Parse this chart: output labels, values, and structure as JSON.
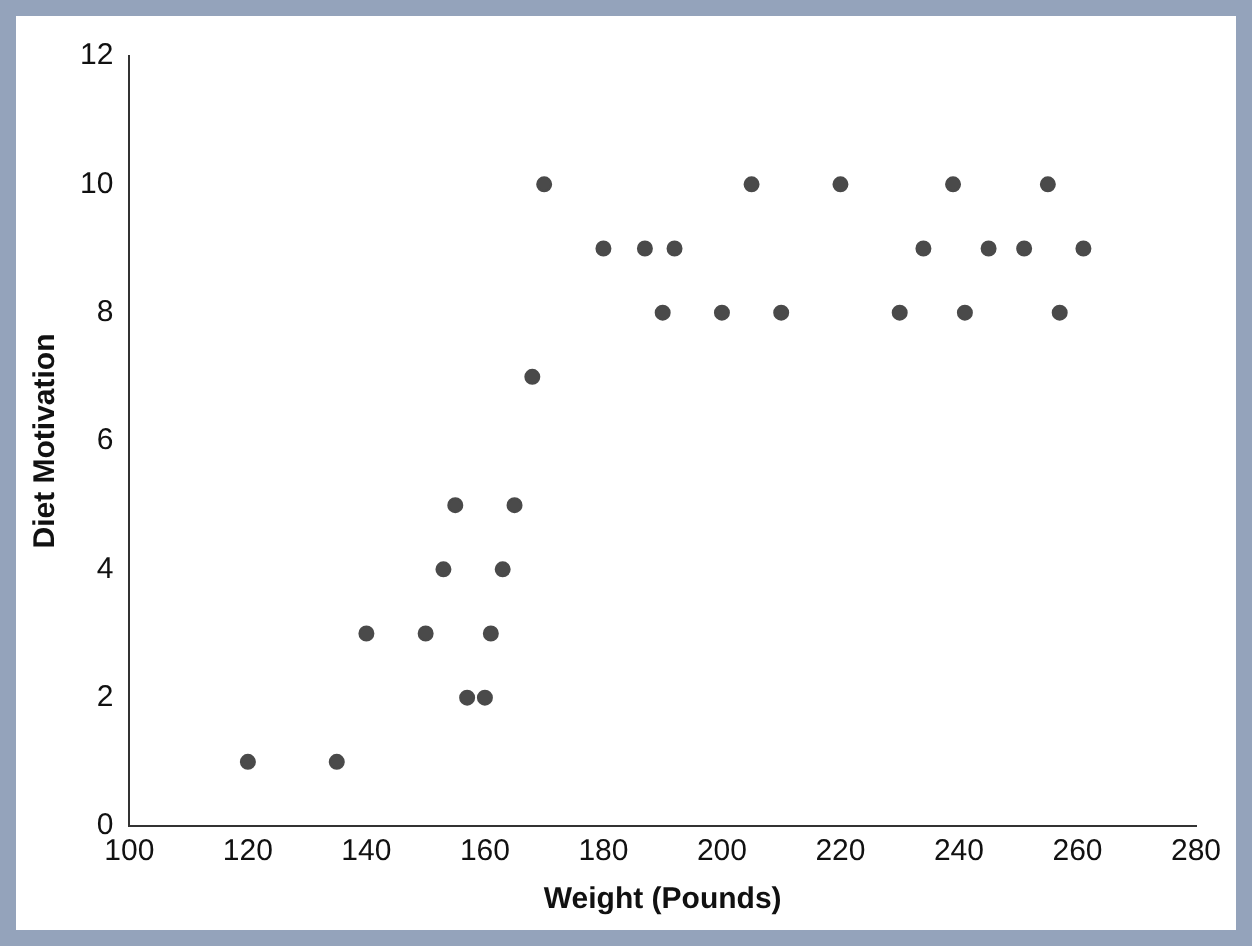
{
  "chart_data": {
    "type": "scatter",
    "xlabel": "Weight (Pounds)",
    "ylabel": "Diet Motivation",
    "x": [
      120,
      135,
      140,
      150,
      153,
      155,
      157,
      160,
      161,
      163,
      165,
      168,
      170,
      180,
      187,
      190,
      192,
      200,
      205,
      210,
      220,
      230,
      234,
      239,
      241,
      245,
      251,
      255,
      257,
      261
    ],
    "series": [
      {
        "color": "#4a4a4a",
        "values": [
          1,
          1,
          3,
          3,
          4,
          5,
          2,
          2,
          3,
          4,
          5,
          7,
          10,
          9,
          9,
          8,
          9,
          8,
          10,
          8,
          10,
          8,
          9,
          10,
          8,
          9,
          9,
          10,
          8,
          9
        ]
      }
    ],
    "xlim": [
      100,
      280
    ],
    "xticks": [
      100,
      120,
      140,
      160,
      180,
      200,
      220,
      240,
      260,
      280
    ],
    "ylim": [
      0,
      12
    ],
    "yticks": [
      0,
      2,
      4,
      6,
      8,
      10,
      12
    ],
    "grid": false,
    "legend": false,
    "marker": "circle"
  }
}
